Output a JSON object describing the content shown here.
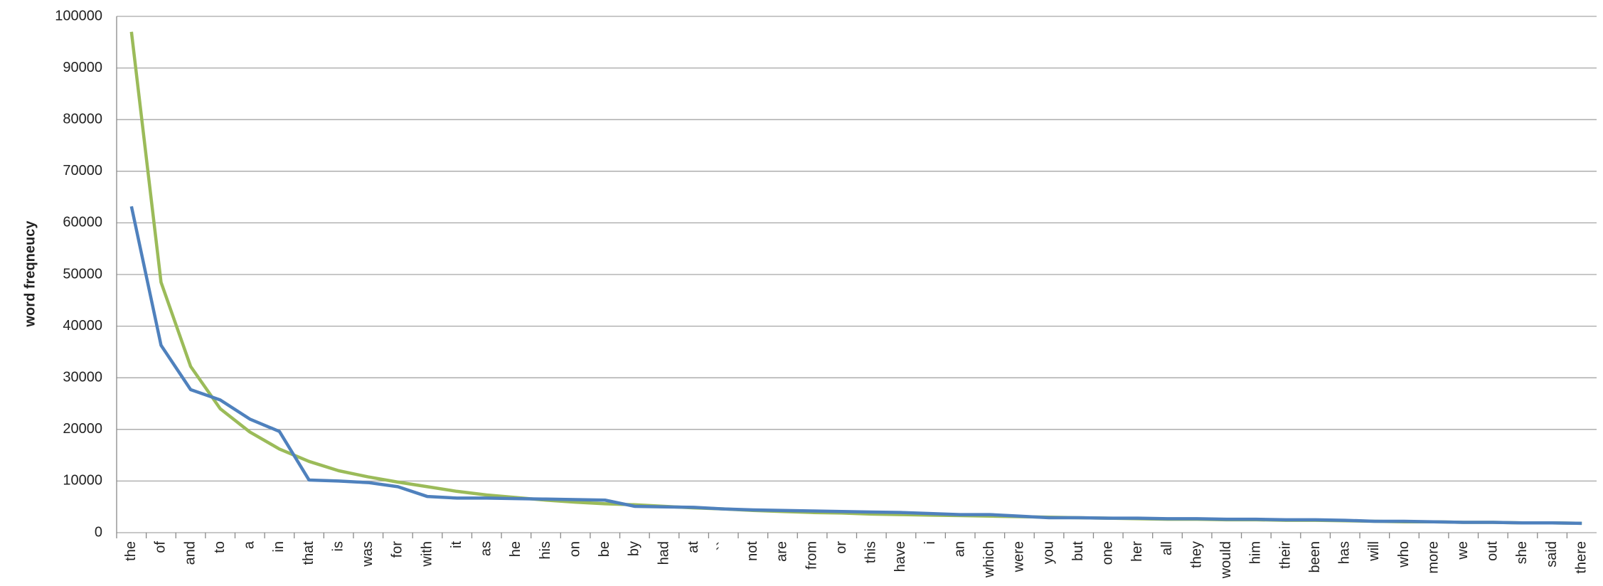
{
  "chart_data": {
    "type": "line",
    "y_label": "word freqneucy",
    "categories": [
      "the",
      "of",
      "and",
      "to",
      "a",
      "in",
      "that",
      "is",
      "was",
      "for",
      "with",
      "it",
      "as",
      "he",
      "his",
      "on",
      "be",
      "by",
      "had",
      "at",
      "``",
      "not",
      "are",
      "from",
      "or",
      "this",
      "have",
      "i",
      "an",
      "which",
      "were",
      "you",
      "but",
      "one",
      "her",
      "all",
      "they",
      "would",
      "him",
      "their",
      "been",
      "has",
      "will",
      "who",
      "more",
      "we",
      "out",
      "she",
      "said",
      "there"
    ],
    "series": [
      {
        "color": "#9bbb59",
        "values": [
          97000,
          48500,
          32200,
          24000,
          19500,
          16200,
          13800,
          12000,
          10800,
          9800,
          8900,
          8000,
          7300,
          6800,
          6300,
          5900,
          5600,
          5400,
          5100,
          4800,
          4600,
          4300,
          4100,
          3900,
          3800,
          3600,
          3500,
          3400,
          3300,
          3200,
          3100,
          3000,
          2900,
          2800,
          2700,
          2600,
          2600,
          2500,
          2500,
          2400,
          2400,
          2300,
          2200,
          2100,
          2100,
          2000,
          2000,
          1900,
          1900,
          1800
        ]
      },
      {
        "color": "#4f81bd",
        "values": [
          63200,
          36300,
          27700,
          25700,
          22000,
          19600,
          10200,
          10000,
          9700,
          8900,
          7000,
          6700,
          6700,
          6600,
          6500,
          6400,
          6300,
          5100,
          5000,
          4900,
          4600,
          4400,
          4300,
          4200,
          4100,
          4000,
          3900,
          3700,
          3500,
          3500,
          3200,
          2900,
          2900,
          2800,
          2800,
          2700,
          2700,
          2600,
          2600,
          2500,
          2500,
          2400,
          2200,
          2200,
          2100,
          2000,
          2000,
          1900,
          1900,
          1800
        ]
      }
    ],
    "ylim": [
      0,
      100000
    ],
    "yticks": [
      0,
      10000,
      20000,
      30000,
      40000,
      50000,
      60000,
      70000,
      80000,
      90000,
      100000
    ],
    "grid": true
  }
}
